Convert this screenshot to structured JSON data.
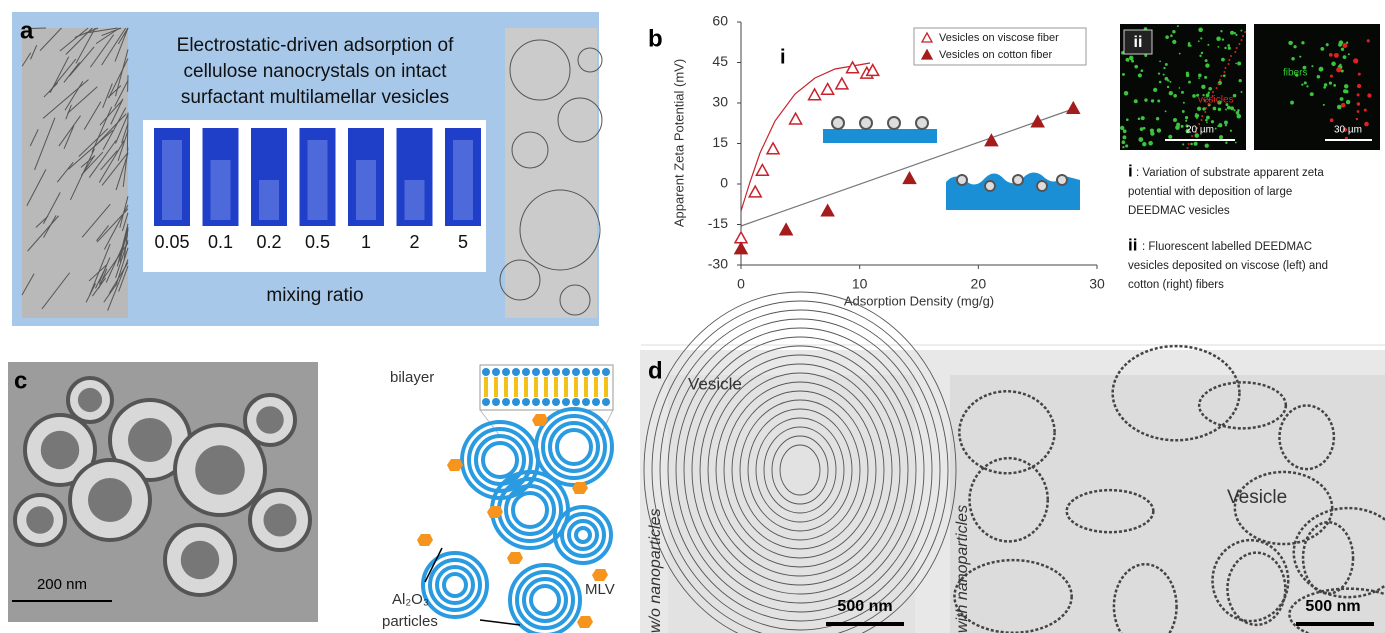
{
  "panel_a": {
    "label": "a",
    "title_lines": [
      "Electrostatic-driven adsorption of",
      "cellulose nanocrystals on intact",
      "surfactant multilamellar vesicles"
    ],
    "ratios": [
      "0.05",
      "0.1",
      "0.2",
      "0.5",
      "1",
      "2",
      "5"
    ],
    "ratio_label": "mixing ratio"
  },
  "chart_data": {
    "type": "scatter",
    "panel_label": "b",
    "xlabel": "Adsorption Density (mg/g)",
    "ylabel": "Apparent Zeta Potential (mV)",
    "annotation": "i",
    "xlim": [
      0,
      30
    ],
    "ylim": [
      -30,
      60
    ],
    "xticks": [
      0,
      10,
      20,
      30
    ],
    "yticks": [
      -30,
      -15,
      0,
      15,
      30,
      45,
      60
    ],
    "legend": "upper right",
    "series": [
      {
        "name": "Vesicles on viscose fiber",
        "color": "#c8232c",
        "marker": "open-triangle",
        "x": [
          0,
          1.2,
          1.8,
          2.7,
          4.6,
          6.2,
          7.3,
          8.5,
          9.4,
          10.6,
          11.1
        ],
        "values": [
          -20,
          -3,
          5,
          13,
          24,
          33,
          35,
          37,
          43,
          41,
          42
        ]
      },
      {
        "name": "Vesicles on cotton fiber",
        "color": "#a51c1c",
        "marker": "filled-triangle",
        "x": [
          0,
          3.8,
          7.3,
          14.2,
          21.1,
          25,
          28
        ],
        "values": [
          -24,
          -17,
          -10,
          2,
          16,
          23,
          28
        ]
      }
    ]
  },
  "panel_b": {
    "image_label": "ii",
    "vesicles": "vesicles",
    "scale_left": "20 µm",
    "fibers": "fibers",
    "scale_right": "30 µm",
    "caption_i": {
      "numeral": "i",
      "lines": [
        ": Variation of substrate apparent zeta",
        "potential with deposition of large",
        "DEEDMAC vesicles"
      ]
    },
    "caption_ii": {
      "numeral": "ii",
      "lines": [
        ": Fluorescent labelled DEEDMAC",
        "vesicles deposited on viscose (left) and",
        "cotton (right) fibers"
      ]
    }
  },
  "panel_c": {
    "label": "c",
    "scale": "200 nm",
    "bilayer": "bilayer",
    "particles": [
      "Al₂O₃",
      "particles"
    ],
    "mlv": "MLV"
  },
  "panel_d": {
    "label": "d",
    "left_title": "Vesicle",
    "left_side": "w/o nanoparticles",
    "left_scale": "500 nm",
    "right_side": "with nanoparticles",
    "right_title": "Vesicle",
    "right_scale": "500 nm"
  }
}
